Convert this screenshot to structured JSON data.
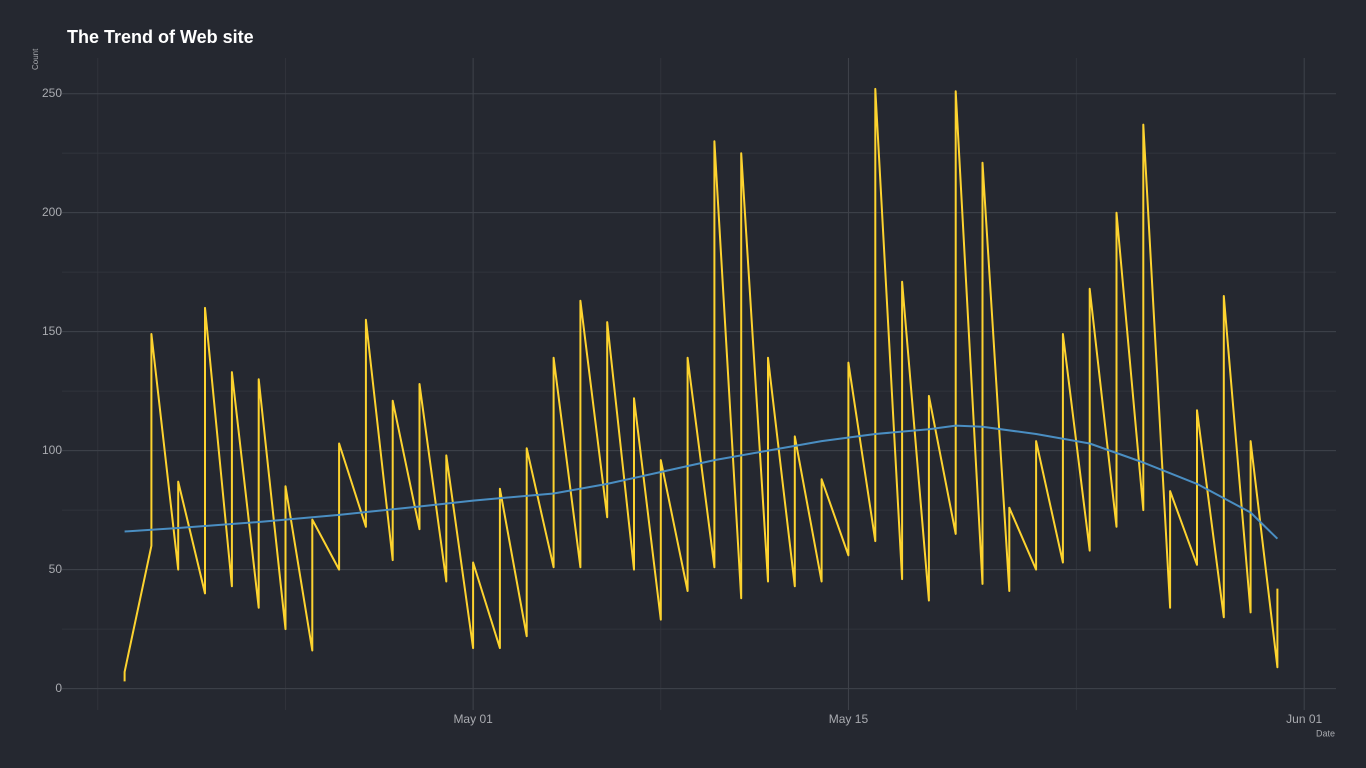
{
  "chart_data": {
    "type": "line",
    "title": "The Trend of Web site",
    "xlabel": "Date",
    "ylabel": "Count",
    "series": [
      {
        "name": "Count",
        "color": "#fdd32f",
        "x": [
          "Apr 18",
          "Apr 18",
          "Apr 19",
          "Apr 19",
          "Apr 20",
          "Apr 20",
          "Apr 21",
          "Apr 21",
          "Apr 22",
          "Apr 22",
          "Apr 23",
          "Apr 23",
          "Apr 24",
          "Apr 24",
          "Apr 25",
          "Apr 25",
          "Apr 26",
          "Apr 26",
          "Apr 27",
          "Apr 27",
          "Apr 28",
          "Apr 28",
          "Apr 29",
          "Apr 29",
          "Apr 30",
          "Apr 30",
          "May 01",
          "May 01",
          "May 02",
          "May 02",
          "May 03",
          "May 03",
          "May 04",
          "May 04",
          "May 05",
          "May 05",
          "May 06",
          "May 06",
          "May 07",
          "May 07",
          "May 08",
          "May 08",
          "May 09",
          "May 09",
          "May 10",
          "May 10",
          "May 11",
          "May 11",
          "May 12",
          "May 12",
          "May 13",
          "May 13",
          "May 14",
          "May 14",
          "May 15",
          "May 15",
          "May 16",
          "May 16",
          "May 17",
          "May 17",
          "May 18",
          "May 18",
          "May 19",
          "May 19",
          "May 20",
          "May 20",
          "May 21",
          "May 21",
          "May 22",
          "May 22",
          "May 23",
          "May 23",
          "May 24",
          "May 24",
          "May 25",
          "May 25",
          "May 26",
          "May 26",
          "May 27",
          "May 27",
          "May 28",
          "May 28",
          "May 29",
          "May 29",
          "May 30",
          "May 30",
          "May 31",
          "May 31"
        ],
        "values": [
          3,
          7,
          60,
          149,
          50,
          87,
          40,
          160,
          43,
          133,
          34,
          130,
          25,
          85,
          16,
          71,
          50,
          103,
          68,
          155,
          54,
          121,
          67,
          128,
          45,
          98,
          17,
          53,
          17,
          84,
          22,
          101,
          51,
          139,
          51,
          163,
          72,
          154,
          50,
          122,
          29,
          96,
          41,
          139,
          51,
          230,
          38,
          225,
          45,
          139,
          43,
          106,
          45,
          88,
          56,
          137,
          62,
          252,
          46,
          171,
          37,
          123,
          65,
          251,
          44,
          221,
          41,
          76,
          50,
          104,
          53,
          149,
          58,
          168,
          68,
          200,
          75,
          237,
          34,
          83,
          52,
          117,
          30,
          165,
          32,
          104,
          9,
          42
        ]
      },
      {
        "name": "Trend",
        "color": "#4a8ec2",
        "x": [
          "Apr 18",
          "Apr 20",
          "Apr 23",
          "Apr 26",
          "Apr 29",
          "May 01",
          "May 04",
          "May 06",
          "May 08",
          "May 10",
          "May 12",
          "May 14",
          "May 16",
          "May 18",
          "May 19",
          "May 20",
          "May 22",
          "May 24",
          "May 26",
          "May 28",
          "May 30",
          "May 31"
        ],
        "values": [
          66,
          67.5,
          70,
          73,
          76.5,
          79,
          82,
          86,
          91,
          96,
          100,
          104,
          107,
          109,
          110.5,
          110,
          107,
          103,
          95,
          86,
          74,
          63
        ]
      }
    ],
    "xlim": [
      "Apr 16",
      "Jun 02"
    ],
    "xticks": [
      "May 01",
      "May 15",
      "Jun 01"
    ],
    "ylim": [
      -9,
      265
    ],
    "yticks": [
      0,
      50,
      100,
      150,
      200,
      250
    ],
    "grid": true
  }
}
